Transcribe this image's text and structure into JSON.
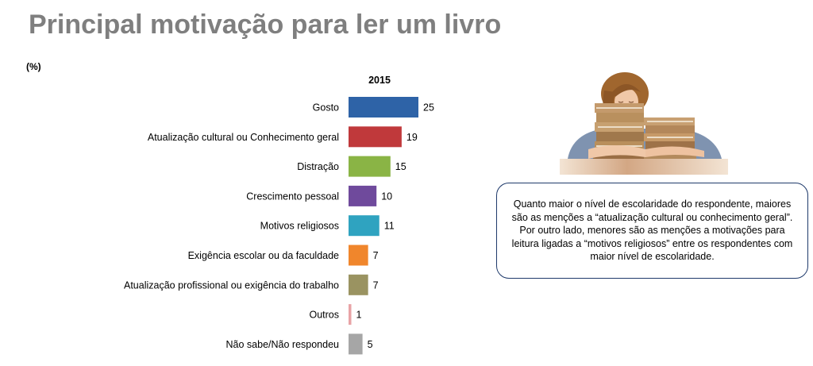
{
  "title": "Principal motivação para ler um livro",
  "unit_label": "(%)",
  "note_text": "Quanto maior o nível de escolaridade do respondente, maiores são as menções a “atualização cultural ou conhecimento geral”. Por outro lado, menores são as menções a motivações para leitura ligadas a “motivos religiosos” entre os respondentes com maior nível de escolaridade.",
  "illustration_icon": "person-sleeping-on-books-icon",
  "chart_data": {
    "type": "bar",
    "orientation": "horizontal",
    "series_label": "2015",
    "categories": [
      "Gosto",
      "Atualização cultural ou Conhecimento geral",
      "Distração",
      "Crescimento pessoal",
      "Motivos religiosos",
      "Exigência escolar ou da faculdade",
      "Atualização profissional ou exigência do trabalho",
      "Outros",
      "Não sabe/Não respondeu"
    ],
    "values": [
      25,
      19,
      15,
      10,
      11,
      7,
      7,
      1,
      5
    ],
    "colors": [
      "#2e63a7",
      "#c0393b",
      "#8ab445",
      "#6f4a9c",
      "#2fa3c0",
      "#f0862c",
      "#9a9361",
      "#e8a3a6",
      "#a6a6a6"
    ],
    "xlim": [
      0,
      25
    ],
    "grid": false,
    "legend": "none"
  }
}
